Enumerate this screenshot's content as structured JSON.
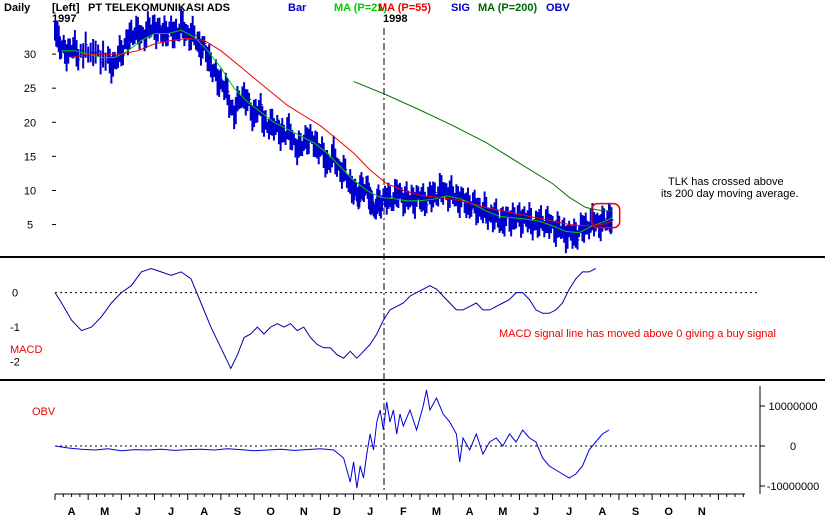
{
  "header": {
    "period": "Daily",
    "axis_side": "[Left]",
    "year_start": "1997",
    "year_mid": "1998",
    "title": "PT TELEKOMUNIKASI ADS",
    "legend": [
      {
        "label": "Bar",
        "color": "#0000cc"
      },
      {
        "label": "MA (P=21)",
        "color": "#00cc00"
      },
      {
        "label": "MA (P=55)",
        "color": "#ee0000"
      },
      {
        "label": "SIG",
        "color": "#0000cc"
      },
      {
        "label": "MA (P=200)",
        "color": "#006600"
      },
      {
        "label": "OBV",
        "color": "#0000cc"
      }
    ]
  },
  "colors": {
    "bars": "#0000cc",
    "ma21": "#00cc00",
    "ma55": "#ee0000",
    "ma200": "#007700",
    "macd": "#0000aa",
    "obv": "#0000dd",
    "annot": "#ee0000"
  },
  "chart_data": [
    {
      "type": "line",
      "panel": "price",
      "ylim": [
        2,
        35
      ],
      "y_ticks": [
        "30",
        "25",
        "20",
        "15",
        "10",
        "5"
      ],
      "x_months": [
        "A",
        "M",
        "J",
        "J",
        "A",
        "S",
        "O",
        "N",
        "D",
        "J",
        "F",
        "M",
        "A",
        "M",
        "J",
        "J",
        "A",
        "S",
        "O",
        "N"
      ],
      "x_range_months": [
        3.0,
        23.8
      ],
      "price": [
        [
          3.0,
          34.0
        ],
        [
          3.15,
          31.5
        ],
        [
          3.3,
          30.0
        ],
        [
          3.5,
          31.0
        ],
        [
          3.7,
          30.0
        ],
        [
          4.0,
          30.5
        ],
        [
          4.3,
          30.0
        ],
        [
          4.6,
          29.0
        ],
        [
          4.8,
          28.5
        ],
        [
          5.0,
          30.5
        ],
        [
          5.2,
          32.0
        ],
        [
          5.4,
          33.5
        ],
        [
          5.6,
          32.5
        ],
        [
          5.8,
          33.5
        ],
        [
          6.0,
          34.0
        ],
        [
          6.2,
          33.0
        ],
        [
          6.4,
          33.5
        ],
        [
          6.6,
          33.0
        ],
        [
          6.8,
          34.0
        ],
        [
          7.0,
          33.0
        ],
        [
          7.2,
          32.5
        ],
        [
          7.4,
          31.0
        ],
        [
          7.6,
          30.0
        ],
        [
          7.8,
          27.0
        ],
        [
          8.0,
          26.0
        ],
        [
          8.2,
          24.0
        ],
        [
          8.4,
          21.0
        ],
        [
          8.6,
          24.0
        ],
        [
          8.8,
          23.0
        ],
        [
          9.0,
          21.0
        ],
        [
          9.2,
          22.0
        ],
        [
          9.4,
          19.0
        ],
        [
          9.6,
          20.0
        ],
        [
          9.8,
          18.0
        ],
        [
          10.0,
          19.0
        ],
        [
          10.2,
          17.0
        ],
        [
          10.4,
          16.0
        ],
        [
          10.6,
          18.0
        ],
        [
          10.8,
          17.0
        ],
        [
          11.0,
          16.0
        ],
        [
          11.2,
          14.0
        ],
        [
          11.4,
          15.0
        ],
        [
          11.6,
          13.0
        ],
        [
          11.8,
          12.0
        ],
        [
          12.0,
          10.0
        ],
        [
          12.1,
          9.0
        ],
        [
          12.2,
          10.5
        ],
        [
          12.35,
          10.0
        ],
        [
          12.5,
          9.5
        ],
        [
          12.6,
          7.0
        ],
        [
          12.75,
          8.0
        ],
        [
          12.9,
          9.0
        ],
        [
          13.1,
          8.5
        ],
        [
          13.3,
          9.5
        ],
        [
          13.5,
          9.0
        ],
        [
          13.7,
          8.5
        ],
        [
          13.9,
          9.0
        ],
        [
          14.1,
          8.5
        ],
        [
          14.3,
          9.0
        ],
        [
          14.5,
          9.5
        ],
        [
          14.7,
          10.0
        ],
        [
          14.9,
          9.5
        ],
        [
          15.1,
          9.0
        ],
        [
          15.3,
          8.5
        ],
        [
          15.5,
          8.0
        ],
        [
          15.7,
          7.5
        ],
        [
          15.9,
          7.0
        ],
        [
          16.1,
          6.5
        ],
        [
          16.3,
          6.0
        ],
        [
          16.5,
          5.5
        ],
        [
          16.7,
          6.0
        ],
        [
          16.9,
          5.8
        ],
        [
          17.1,
          6.0
        ],
        [
          17.3,
          5.5
        ],
        [
          17.5,
          5.0
        ],
        [
          17.7,
          5.5
        ],
        [
          17.9,
          5.0
        ],
        [
          18.1,
          4.5
        ],
        [
          18.3,
          4.0
        ],
        [
          18.5,
          3.5
        ],
        [
          18.7,
          3.5
        ],
        [
          18.9,
          4.5
        ],
        [
          19.1,
          5.0
        ],
        [
          19.3,
          5.5
        ],
        [
          19.5,
          5.0
        ],
        [
          19.7,
          6.0
        ],
        [
          19.8,
          6.5
        ]
      ],
      "ma21": [
        [
          3.2,
          30.5
        ],
        [
          3.6,
          30.5
        ],
        [
          4.0,
          30.0
        ],
        [
          4.4,
          29.5
        ],
        [
          4.8,
          29.5
        ],
        [
          5.2,
          30.5
        ],
        [
          5.6,
          32.0
        ],
        [
          6.0,
          33.0
        ],
        [
          6.4,
          33.0
        ],
        [
          6.8,
          33.5
        ],
        [
          7.2,
          32.5
        ],
        [
          7.6,
          30.5
        ],
        [
          8.0,
          28.0
        ],
        [
          8.4,
          25.0
        ],
        [
          8.8,
          23.0
        ],
        [
          9.2,
          21.5
        ],
        [
          9.6,
          20.0
        ],
        [
          10.0,
          19.0
        ],
        [
          10.4,
          18.0
        ],
        [
          10.8,
          17.0
        ],
        [
          11.2,
          15.5
        ],
        [
          11.6,
          13.5
        ],
        [
          12.0,
          11.5
        ],
        [
          12.4,
          10.0
        ],
        [
          12.8,
          9.0
        ],
        [
          13.2,
          8.8
        ],
        [
          13.6,
          8.5
        ],
        [
          14.0,
          8.5
        ],
        [
          14.4,
          8.7
        ],
        [
          14.8,
          9.2
        ],
        [
          15.2,
          8.8
        ],
        [
          15.6,
          8.0
        ],
        [
          16.0,
          7.0
        ],
        [
          16.4,
          6.2
        ],
        [
          16.8,
          6.0
        ],
        [
          17.2,
          5.8
        ],
        [
          17.6,
          5.5
        ],
        [
          18.0,
          4.8
        ],
        [
          18.4,
          4.0
        ],
        [
          18.8,
          3.8
        ],
        [
          19.2,
          4.8
        ],
        [
          19.6,
          5.5
        ],
        [
          19.8,
          6.0
        ]
      ],
      "ma55": [
        [
          3.5,
          29.5
        ],
        [
          4.0,
          30.0
        ],
        [
          4.5,
          30.0
        ],
        [
          5.0,
          30.0
        ],
        [
          5.5,
          30.5
        ],
        [
          6.0,
          31.5
        ],
        [
          6.5,
          32.0
        ],
        [
          7.0,
          32.3
        ],
        [
          7.5,
          32.0
        ],
        [
          8.0,
          30.5
        ],
        [
          8.5,
          28.5
        ],
        [
          9.0,
          26.5
        ],
        [
          9.5,
          24.5
        ],
        [
          10.0,
          22.5
        ],
        [
          10.5,
          21.0
        ],
        [
          11.0,
          19.5
        ],
        [
          11.5,
          17.5
        ],
        [
          12.0,
          15.5
        ],
        [
          12.5,
          13.0
        ],
        [
          13.0,
          11.0
        ],
        [
          13.5,
          10.0
        ],
        [
          14.0,
          9.3
        ],
        [
          14.5,
          9.0
        ],
        [
          15.0,
          8.7
        ],
        [
          15.5,
          8.2
        ],
        [
          16.0,
          7.5
        ],
        [
          16.5,
          7.0
        ],
        [
          17.0,
          6.5
        ],
        [
          17.5,
          6.0
        ],
        [
          18.0,
          5.5
        ],
        [
          18.5,
          5.0
        ],
        [
          19.0,
          4.8
        ],
        [
          19.5,
          5.0
        ],
        [
          19.8,
          5.5
        ]
      ],
      "ma200": [
        [
          12.0,
          26.0
        ],
        [
          13.0,
          24.0
        ],
        [
          14.0,
          21.8
        ],
        [
          15.0,
          19.5
        ],
        [
          16.0,
          17.0
        ],
        [
          17.0,
          14.0
        ],
        [
          18.0,
          11.0
        ],
        [
          18.5,
          9.0
        ],
        [
          19.0,
          7.5
        ],
        [
          19.5,
          7.0
        ],
        [
          19.8,
          7.0
        ]
      ],
      "circle_at": [
        19.6,
        6.3
      ],
      "annotation_lines": [
        "TLK has crossed above",
        "its 200 day moving average."
      ]
    },
    {
      "type": "line",
      "panel": "macd",
      "ylim": [
        -2.3,
        0.8
      ],
      "y_ticks": [
        "0",
        "-1",
        "-2"
      ],
      "series_label": "MACD",
      "values": [
        [
          3.0,
          0.0
        ],
        [
          3.2,
          -0.3
        ],
        [
          3.5,
          -0.8
        ],
        [
          3.8,
          -1.1
        ],
        [
          4.1,
          -1.0
        ],
        [
          4.4,
          -0.7
        ],
        [
          4.7,
          -0.3
        ],
        [
          5.0,
          0.0
        ],
        [
          5.3,
          0.2
        ],
        [
          5.6,
          0.6
        ],
        [
          5.9,
          0.7
        ],
        [
          6.2,
          0.6
        ],
        [
          6.5,
          0.5
        ],
        [
          6.8,
          0.6
        ],
        [
          7.1,
          0.4
        ],
        [
          7.4,
          -0.3
        ],
        [
          7.7,
          -1.0
        ],
        [
          8.0,
          -1.6
        ],
        [
          8.3,
          -2.2
        ],
        [
          8.5,
          -1.8
        ],
        [
          8.7,
          -1.3
        ],
        [
          8.9,
          -1.2
        ],
        [
          9.1,
          -1.0
        ],
        [
          9.3,
          -1.2
        ],
        [
          9.5,
          -1.0
        ],
        [
          9.7,
          -0.9
        ],
        [
          9.9,
          -1.0
        ],
        [
          10.1,
          -0.9
        ],
        [
          10.3,
          -1.1
        ],
        [
          10.5,
          -1.0
        ],
        [
          10.7,
          -1.3
        ],
        [
          10.9,
          -1.5
        ],
        [
          11.1,
          -1.6
        ],
        [
          11.3,
          -1.6
        ],
        [
          11.5,
          -1.8
        ],
        [
          11.7,
          -1.9
        ],
        [
          11.9,
          -1.7
        ],
        [
          12.1,
          -1.9
        ],
        [
          12.3,
          -1.7
        ],
        [
          12.5,
          -1.5
        ],
        [
          12.7,
          -1.2
        ],
        [
          12.9,
          -0.8
        ],
        [
          13.1,
          -0.5
        ],
        [
          13.3,
          -0.4
        ],
        [
          13.5,
          -0.3
        ],
        [
          13.7,
          -0.1
        ],
        [
          13.9,
          0.0
        ],
        [
          14.1,
          0.1
        ],
        [
          14.3,
          0.2
        ],
        [
          14.5,
          0.1
        ],
        [
          14.7,
          -0.1
        ],
        [
          14.9,
          -0.3
        ],
        [
          15.1,
          -0.5
        ],
        [
          15.3,
          -0.5
        ],
        [
          15.5,
          -0.4
        ],
        [
          15.7,
          -0.3
        ],
        [
          15.9,
          -0.5
        ],
        [
          16.1,
          -0.5
        ],
        [
          16.3,
          -0.4
        ],
        [
          16.5,
          -0.3
        ],
        [
          16.7,
          -0.2
        ],
        [
          16.9,
          0.0
        ],
        [
          17.1,
          0.0
        ],
        [
          17.3,
          -0.2
        ],
        [
          17.5,
          -0.5
        ],
        [
          17.7,
          -0.6
        ],
        [
          17.9,
          -0.6
        ],
        [
          18.1,
          -0.5
        ],
        [
          18.3,
          -0.3
        ],
        [
          18.5,
          0.1
        ],
        [
          18.7,
          0.4
        ],
        [
          18.9,
          0.6
        ],
        [
          19.1,
          0.6
        ],
        [
          19.3,
          0.7
        ]
      ],
      "annotation": "MACD signal line has moved above 0 giving a buy signal"
    },
    {
      "type": "line",
      "panel": "obv",
      "ylim": [
        -11000000,
        15000000
      ],
      "y_ticks": [
        "10000000",
        "0",
        "-10000000"
      ],
      "series_label": "OBV",
      "values": [
        [
          3.0,
          0
        ],
        [
          3.4,
          -500000
        ],
        [
          3.8,
          -800000
        ],
        [
          4.2,
          -1000000
        ],
        [
          4.6,
          -700000
        ],
        [
          5.0,
          -1200000
        ],
        [
          5.4,
          -900000
        ],
        [
          5.8,
          -1000000
        ],
        [
          6.2,
          -800000
        ],
        [
          6.6,
          -1100000
        ],
        [
          7.0,
          -900000
        ],
        [
          7.4,
          -800000
        ],
        [
          7.8,
          -1000000
        ],
        [
          8.2,
          -700000
        ],
        [
          8.6,
          -900000
        ],
        [
          9.0,
          -1200000
        ],
        [
          9.4,
          -1000000
        ],
        [
          9.8,
          -800000
        ],
        [
          10.2,
          -1100000
        ],
        [
          10.6,
          -900000
        ],
        [
          11.0,
          -700000
        ],
        [
          11.4,
          -1000000
        ],
        [
          11.7,
          -3000000
        ],
        [
          11.9,
          -9000000
        ],
        [
          12.0,
          -4000000
        ],
        [
          12.1,
          -10500000
        ],
        [
          12.2,
          -5000000
        ],
        [
          12.3,
          -8000000
        ],
        [
          12.4,
          -2000000
        ],
        [
          12.5,
          3000000
        ],
        [
          12.6,
          -1000000
        ],
        [
          12.7,
          6000000
        ],
        [
          12.8,
          9000000
        ],
        [
          12.9,
          4000000
        ],
        [
          13.0,
          11000000
        ],
        [
          13.1,
          6000000
        ],
        [
          13.2,
          9000000
        ],
        [
          13.3,
          3000000
        ],
        [
          13.4,
          8000000
        ],
        [
          13.5,
          5000000
        ],
        [
          13.7,
          9000000
        ],
        [
          13.9,
          4000000
        ],
        [
          14.1,
          10000000
        ],
        [
          14.2,
          14000000
        ],
        [
          14.3,
          9000000
        ],
        [
          14.5,
          12000000
        ],
        [
          14.7,
          8000000
        ],
        [
          14.9,
          6000000
        ],
        [
          15.1,
          3000000
        ],
        [
          15.2,
          -4000000
        ],
        [
          15.3,
          2000000
        ],
        [
          15.5,
          -1000000
        ],
        [
          15.7,
          3000000
        ],
        [
          15.9,
          -2000000
        ],
        [
          16.1,
          1000000
        ],
        [
          16.3,
          2000000
        ],
        [
          16.5,
          0
        ],
        [
          16.7,
          3000000
        ],
        [
          16.9,
          1000000
        ],
        [
          17.1,
          4000000
        ],
        [
          17.3,
          2000000
        ],
        [
          17.5,
          1000000
        ],
        [
          17.7,
          -3000000
        ],
        [
          17.9,
          -5000000
        ],
        [
          18.1,
          -6000000
        ],
        [
          18.3,
          -7000000
        ],
        [
          18.5,
          -8000000
        ],
        [
          18.7,
          -7000000
        ],
        [
          18.9,
          -5000000
        ],
        [
          19.1,
          -1000000
        ],
        [
          19.3,
          1000000
        ],
        [
          19.5,
          3000000
        ],
        [
          19.7,
          4000000
        ]
      ]
    }
  ]
}
